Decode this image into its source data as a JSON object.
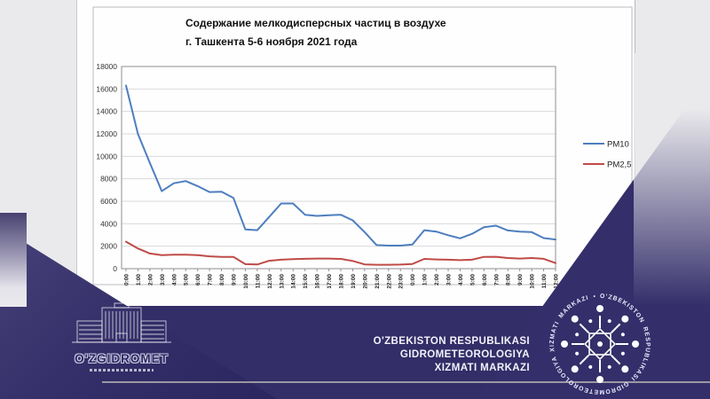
{
  "page": {
    "background_color": "#eaeaed",
    "brand_navy": "#332d68"
  },
  "chart_data": {
    "type": "line",
    "title_line1": "Содержание мелкодисперсных частиц в воздухе",
    "title_line2": "г. Ташкента 5-6 ноября 2021 года",
    "xlabel": "",
    "ylabel": "",
    "ylim": [
      0,
      18000
    ],
    "ytick_step": 2000,
    "grid": true,
    "legend_position": "right",
    "x_labels": [
      "0:00",
      "1:00",
      "2:00",
      "3:00",
      "4:00",
      "5:00",
      "6:00",
      "7:00",
      "8:00",
      "9:00",
      "10:00",
      "11:00",
      "12:00",
      "13:00",
      "14:00",
      "15:00",
      "16:00",
      "17:00",
      "18:00",
      "19:00",
      "20:00",
      "21:00",
      "22:00",
      "23:00",
      "0:00",
      "1:00",
      "2:00",
      "3:00",
      "4:00",
      "5:00",
      "6:00",
      "7:00",
      "8:00",
      "9:00",
      "10:00",
      "11:00",
      "12:00"
    ],
    "series": [
      {
        "name": "PM10",
        "color": "#4d7ebf",
        "values": [
          16300,
          12000,
          9400,
          6900,
          7600,
          7800,
          7350,
          6820,
          6850,
          6300,
          3500,
          3430,
          4600,
          5800,
          5800,
          4800,
          4700,
          4750,
          4800,
          4300,
          3250,
          2100,
          2050,
          2050,
          2150,
          3430,
          3300,
          2980,
          2700,
          3100,
          3690,
          3830,
          3400,
          3300,
          3250,
          2720,
          2600
        ]
      },
      {
        "name": "PM2,5",
        "color": "#bf4b47",
        "values": [
          2400,
          1800,
          1350,
          1200,
          1250,
          1250,
          1200,
          1100,
          1050,
          1050,
          400,
          370,
          700,
          800,
          850,
          880,
          900,
          900,
          870,
          690,
          380,
          350,
          350,
          360,
          420,
          870,
          820,
          800,
          760,
          800,
          1050,
          1060,
          950,
          900,
          950,
          880,
          500
        ]
      }
    ]
  },
  "footer": {
    "logo_text": "O'ZGIDROMET",
    "org_line1": "O'ZBEKISTON RESPUBLIKASI",
    "org_line2": "GIDROMETEOROLOGIYA",
    "org_line3": "XIZMATI MARKAZI",
    "emblem_ring_text": "O'ZBEKISTON RESPUBLIKASI GIDROMETEOROLOGIYA XIZMATI MARKAZI • "
  }
}
